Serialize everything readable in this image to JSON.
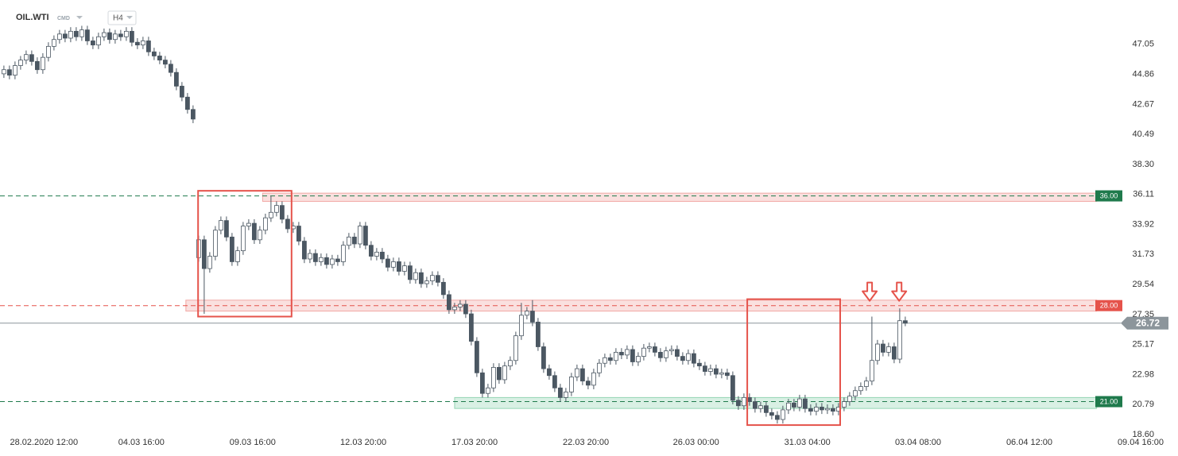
{
  "header": {
    "symbol": "OIL.WTI",
    "tag": "CMD",
    "timeframe": "H4"
  },
  "chart_data": {
    "type": "candlestick",
    "x": [
      0,
      1,
      2,
      3,
      4,
      5,
      6,
      7,
      8,
      9,
      10,
      11,
      12,
      13,
      14,
      15,
      16,
      17,
      18,
      19,
      20,
      21,
      22,
      23,
      24,
      25,
      26,
      27,
      28,
      29,
      30,
      31,
      32,
      33,
      34,
      35,
      36,
      37,
      38,
      39,
      40,
      41,
      42,
      43,
      44,
      45,
      46,
      47,
      48,
      49,
      50,
      51,
      52,
      53,
      54,
      55,
      56,
      57,
      58,
      59,
      60,
      61,
      62,
      63,
      64,
      65,
      66,
      67,
      68,
      69,
      70,
      71,
      72,
      73,
      74,
      75,
      76,
      77,
      78,
      79,
      80,
      81,
      82,
      83,
      84,
      85,
      86,
      87,
      88,
      89,
      90,
      91,
      92,
      93,
      94,
      95,
      96,
      97,
      98,
      99,
      100,
      101,
      102,
      103,
      104,
      105,
      106,
      107,
      108,
      109,
      110,
      111,
      112,
      113,
      114,
      115,
      116,
      117,
      118,
      119,
      120,
      121,
      122,
      123,
      124,
      125,
      126,
      127,
      128,
      129,
      130,
      131,
      132,
      133,
      134,
      135,
      136,
      137,
      138,
      139,
      140,
      141,
      142,
      143,
      144,
      145,
      146,
      147,
      148,
      149,
      150,
      151,
      152,
      153,
      154,
      155,
      156,
      157,
      158,
      159,
      160,
      161,
      162
    ],
    "open": [
      44.9,
      45.2,
      44.8,
      45.5,
      45.9,
      46.3,
      45.8,
      45.2,
      46.1,
      46.9,
      47.4,
      47.8,
      47.5,
      48.0,
      47.6,
      48.1,
      47.3,
      47.0,
      47.6,
      47.9,
      47.4,
      47.8,
      47.6,
      48.0,
      47.2,
      47.0,
      47.3,
      46.5,
      46.2,
      45.9,
      45.6,
      45.0,
      44.0,
      43.2,
      42.3,
      31.5,
      32.8,
      30.7,
      31.6,
      33.5,
      34.2,
      33.0,
      31.2,
      32.0,
      33.8,
      34.0,
      32.8,
      33.5,
      34.4,
      34.8,
      35.3,
      34.3,
      33.6,
      33.8,
      32.7,
      31.4,
      31.8,
      31.2,
      31.5,
      31.0,
      31.4,
      31.2,
      32.4,
      33.0,
      32.5,
      33.8,
      32.4,
      31.6,
      31.9,
      31.4,
      30.8,
      31.2,
      30.5,
      30.9,
      29.9,
      30.4,
      29.6,
      29.8,
      30.2,
      29.7,
      28.8,
      27.7,
      27.9,
      28.1,
      27.4,
      25.4,
      23.1,
      21.6,
      22.0,
      23.5,
      22.6,
      23.6,
      24.0,
      25.8,
      27.3,
      27.6,
      26.8,
      25.0,
      23.4,
      22.9,
      22.0,
      21.3,
      21.7,
      22.8,
      23.4,
      22.5,
      22.2,
      23.1,
      23.8,
      24.2,
      24.0,
      24.6,
      24.4,
      24.8,
      23.9,
      24.3,
      24.9,
      25.0,
      24.6,
      24.2,
      24.7,
      24.8,
      24.3,
      24.0,
      24.5,
      23.8,
      23.6,
      23.2,
      23.4,
      23.0,
      23.1,
      22.9,
      21.1,
      20.7,
      21.3,
      21.0,
      20.5,
      20.7,
      20.2,
      20.0,
      19.7,
      20.4,
      20.9,
      20.6,
      21.2,
      20.5,
      20.3,
      20.6,
      20.4,
      20.5,
      20.3,
      20.6,
      21.0,
      21.4,
      21.8,
      22.1,
      22.5,
      24.0,
      25.2,
      24.6,
      25.0,
      24.1,
      26.9
    ],
    "high": [
      45.5,
      45.5,
      45.8,
      46.2,
      46.6,
      46.6,
      46.1,
      46.4,
      47.2,
      47.7,
      48.1,
      48.1,
      48.3,
      48.3,
      48.4,
      48.4,
      47.6,
      47.9,
      48.2,
      48.2,
      48.1,
      48.1,
      48.3,
      48.3,
      47.5,
      47.6,
      47.6,
      46.8,
      46.5,
      46.2,
      45.9,
      45.3,
      44.3,
      43.5,
      42.6,
      33.1,
      33.1,
      31.9,
      33.8,
      34.5,
      34.5,
      33.3,
      32.3,
      34.1,
      34.3,
      34.3,
      33.8,
      34.7,
      36.0,
      35.6,
      35.6,
      34.6,
      34.1,
      34.1,
      33.0,
      32.1,
      32.1,
      31.8,
      31.8,
      31.7,
      31.7,
      32.7,
      33.3,
      33.3,
      34.1,
      34.1,
      32.7,
      32.2,
      32.2,
      31.7,
      31.5,
      31.5,
      31.2,
      31.2,
      30.7,
      30.7,
      30.1,
      30.5,
      30.5,
      30.0,
      29.1,
      28.2,
      28.4,
      28.4,
      27.7,
      25.7,
      23.4,
      22.3,
      23.8,
      23.8,
      23.9,
      24.3,
      26.1,
      28.2,
      27.9,
      28.4,
      27.1,
      25.3,
      23.7,
      23.2,
      22.3,
      22.0,
      23.1,
      23.7,
      23.7,
      22.8,
      23.4,
      24.1,
      24.5,
      24.5,
      24.9,
      24.9,
      25.1,
      25.1,
      24.6,
      25.2,
      25.3,
      25.3,
      24.9,
      25.0,
      25.1,
      25.1,
      24.6,
      24.8,
      24.8,
      24.1,
      23.9,
      23.7,
      23.7,
      23.4,
      23.4,
      23.2,
      21.4,
      21.6,
      21.6,
      21.3,
      21.0,
      21.0,
      20.5,
      20.3,
      20.7,
      21.2,
      21.2,
      21.5,
      21.5,
      20.8,
      20.9,
      20.9,
      20.8,
      20.8,
      20.9,
      21.3,
      21.7,
      22.1,
      22.4,
      22.8,
      27.2,
      25.5,
      25.5,
      25.3,
      25.3,
      27.8,
      27.2
    ],
    "low": [
      44.6,
      44.5,
      44.5,
      45.2,
      45.6,
      45.5,
      44.9,
      44.9,
      45.8,
      46.6,
      47.1,
      47.2,
      47.2,
      47.3,
      47.3,
      47.0,
      46.7,
      46.7,
      47.3,
      47.1,
      47.1,
      47.3,
      47.3,
      46.9,
      46.7,
      46.7,
      46.2,
      45.9,
      45.6,
      45.3,
      44.7,
      43.7,
      42.9,
      42.0,
      41.3,
      31.2,
      27.4,
      30.4,
      31.3,
      33.2,
      32.7,
      30.9,
      30.9,
      31.7,
      33.5,
      32.5,
      32.5,
      33.2,
      34.1,
      34.5,
      34.0,
      33.3,
      33.3,
      32.4,
      31.1,
      31.1,
      30.9,
      30.9,
      30.7,
      30.7,
      30.9,
      30.9,
      32.1,
      32.2,
      32.2,
      32.1,
      31.3,
      31.3,
      31.1,
      30.5,
      30.5,
      30.2,
      30.2,
      29.6,
      29.6,
      29.3,
      29.3,
      29.5,
      29.4,
      28.5,
      27.4,
      27.4,
      27.6,
      27.1,
      25.1,
      22.8,
      21.3,
      21.3,
      21.7,
      22.3,
      22.3,
      23.3,
      23.7,
      25.5,
      27.0,
      26.5,
      24.7,
      23.1,
      22.6,
      21.7,
      21.0,
      21.0,
      21.4,
      22.5,
      22.2,
      21.9,
      21.9,
      22.8,
      23.5,
      23.7,
      23.7,
      24.1,
      24.1,
      23.6,
      23.6,
      24.0,
      24.6,
      24.3,
      23.9,
      23.9,
      24.4,
      24.0,
      23.7,
      23.7,
      23.5,
      23.3,
      22.9,
      22.9,
      22.7,
      22.7,
      22.6,
      20.8,
      20.4,
      20.4,
      20.7,
      20.2,
      20.2,
      19.9,
      19.7,
      19.4,
      19.4,
      20.1,
      20.3,
      20.3,
      20.2,
      20.0,
      20.0,
      20.1,
      20.1,
      20.0,
      20.0,
      20.3,
      20.7,
      21.1,
      21.5,
      21.8,
      22.2,
      23.7,
      24.3,
      24.3,
      23.8,
      23.8,
      26.5
    ],
    "close": [
      45.2,
      44.8,
      45.5,
      45.9,
      46.3,
      45.8,
      45.2,
      46.1,
      46.9,
      47.4,
      47.8,
      47.5,
      48.0,
      47.6,
      48.1,
      47.3,
      47.0,
      47.6,
      47.9,
      47.4,
      47.8,
      47.6,
      48.0,
      47.2,
      47.0,
      47.3,
      46.5,
      46.2,
      45.9,
      45.6,
      45.0,
      44.0,
      43.2,
      42.3,
      41.6,
      32.8,
      30.7,
      31.6,
      33.5,
      34.2,
      33.0,
      31.2,
      32.0,
      33.8,
      34.0,
      32.8,
      33.5,
      34.4,
      34.8,
      35.3,
      34.3,
      33.6,
      33.8,
      32.7,
      31.4,
      31.8,
      31.2,
      31.5,
      31.0,
      31.4,
      31.2,
      32.4,
      33.0,
      32.5,
      33.8,
      32.4,
      31.6,
      31.9,
      31.4,
      30.8,
      31.2,
      30.5,
      30.9,
      29.9,
      30.4,
      29.6,
      29.8,
      30.2,
      29.7,
      28.8,
      27.7,
      27.9,
      28.1,
      27.4,
      25.4,
      23.1,
      21.6,
      22.0,
      23.5,
      22.6,
      23.6,
      24.0,
      25.8,
      27.3,
      27.6,
      26.8,
      25.0,
      23.4,
      22.9,
      22.0,
      21.3,
      21.7,
      22.8,
      23.4,
      22.5,
      22.2,
      23.1,
      23.8,
      24.2,
      24.0,
      24.6,
      24.4,
      24.8,
      23.9,
      24.3,
      24.9,
      25.0,
      24.6,
      24.2,
      24.7,
      24.8,
      24.3,
      24.0,
      24.5,
      23.8,
      23.6,
      23.2,
      23.4,
      23.0,
      23.1,
      22.9,
      21.1,
      20.7,
      21.3,
      21.0,
      20.5,
      20.7,
      20.2,
      20.0,
      19.7,
      20.4,
      20.9,
      20.6,
      21.2,
      20.5,
      20.3,
      20.6,
      20.4,
      20.5,
      20.3,
      20.6,
      21.0,
      21.4,
      21.8,
      22.1,
      22.5,
      24.0,
      25.2,
      24.6,
      25.0,
      24.1,
      26.9,
      26.72
    ],
    "up_color": "#ffffff",
    "down_color": "#4b5762",
    "xlim": [
      -0.7,
      209.3
    ],
    "xticks": [
      {
        "value": 7.2,
        "label": "28.02.2020 12:00"
      },
      {
        "value": 24.7,
        "label": "04.03 16:00"
      },
      {
        "value": 44.7,
        "label": "09.03 16:00"
      },
      {
        "value": 64.6,
        "label": "12.03 20:00"
      },
      {
        "value": 84.6,
        "label": "17.03 20:00"
      },
      {
        "value": 104.6,
        "label": "22.03 20:00"
      },
      {
        "value": 124.4,
        "label": "26.03 00:00"
      },
      {
        "value": 144.4,
        "label": "31.03 04:00"
      },
      {
        "value": 164.3,
        "label": "03.04 08:00"
      },
      {
        "value": 184.3,
        "label": "06.04 12:00"
      },
      {
        "value": 204.3,
        "label": "09.04 16:00"
      }
    ],
    "ylim": [
      18.6,
      50.28
    ],
    "yticks": [
      47.05,
      44.86,
      42.67,
      40.49,
      {
        "value": 38.3,
        "label": "38.30"
      },
      36.11,
      33.92,
      31.73,
      29.54,
      27.35,
      25.17,
      22.98,
      20.79,
      {
        "value": 18.6,
        "label": "18.60"
      }
    ],
    "levels": [
      {
        "value": 36,
        "label": "36.00",
        "color": "#1f7a4c"
      },
      {
        "value": 28,
        "label": "28.00",
        "color": "#e5534b"
      },
      {
        "value": 21,
        "label": "21.00",
        "color": "#1f7a4c"
      }
    ],
    "last": 26.72,
    "zones": [
      {
        "x": [
          46.5,
          196.4
        ],
        "y": [
          35.6,
          36.2
        ],
        "color": "#e5534b"
      },
      {
        "x": [
          32.7,
          196.4
        ],
        "y": [
          27.6,
          28.4
        ],
        "color": "#e5534b"
      },
      {
        "x": [
          81.0,
          196.4
        ],
        "y": [
          20.5,
          21.3
        ],
        "color": "#2eaa6a"
      }
    ],
    "boxes": [
      {
        "x": [
          34.9,
          51.7
        ],
        "y": [
          27.2,
          36.37
        ],
        "color": "#e5534b"
      },
      {
        "x": [
          133.6,
          150.3
        ],
        "y": [
          19.29,
          28.47
        ],
        "color": "#e5534b"
      }
    ],
    "arrows": [
      {
        "x": 155.6,
        "y": 28.35,
        "color": "#e5534b"
      },
      {
        "x": 160.9,
        "y": 28.35,
        "color": "#e5534b"
      }
    ]
  }
}
